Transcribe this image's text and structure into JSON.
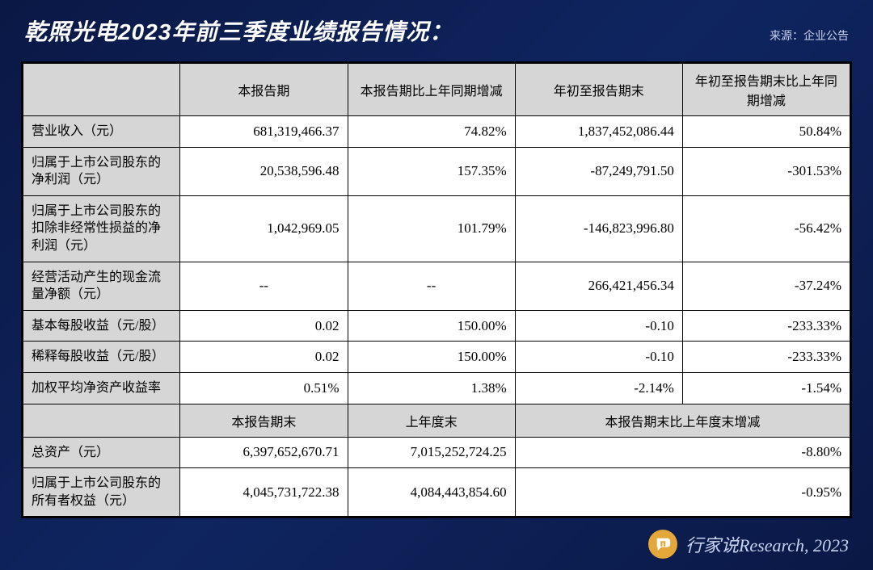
{
  "title": "乾照光电2023年前三季度业绩报告情况：",
  "source": "来源：企业公告",
  "table": {
    "headers1": [
      "",
      "本报告期",
      "本报告期比上年同期增减",
      "年初至报告期末",
      "年初至报告期末比上年同期增减"
    ],
    "rows1": [
      {
        "label": "营业收入（元）",
        "c1": "681,319,466.37",
        "c2": "74.82%",
        "c3": "1,837,452,086.44",
        "c4": "50.84%"
      },
      {
        "label": "归属于上市公司股东的净利润（元）",
        "c1": "20,538,596.48",
        "c2": "157.35%",
        "c3": "-87,249,791.50",
        "c4": "-301.53%"
      },
      {
        "label": "归属于上市公司股东的扣除非经常性损益的净利润（元）",
        "c1": "1,042,969.05",
        "c2": "101.79%",
        "c3": "-146,823,996.80",
        "c4": "-56.42%"
      },
      {
        "label": "经营活动产生的现金流量净额（元）",
        "c1": "--",
        "c2": "--",
        "c3": "266,421,456.34",
        "c4": "-37.24%",
        "centerc1c2": true
      },
      {
        "label": "基本每股收益（元/股）",
        "c1": "0.02",
        "c2": "150.00%",
        "c3": "-0.10",
        "c4": "-233.33%"
      },
      {
        "label": "稀释每股收益（元/股）",
        "c1": "0.02",
        "c2": "150.00%",
        "c3": "-0.10",
        "c4": "-233.33%"
      },
      {
        "label": "加权平均净资产收益率",
        "c1": "0.51%",
        "c2": "1.38%",
        "c3": "-2.14%",
        "c4": "-1.54%"
      }
    ],
    "headers2": [
      "",
      "本报告期末",
      "上年度末",
      "本报告期末比上年度末增减"
    ],
    "rows2": [
      {
        "label": "总资产（元）",
        "c1": "6,397,652,670.71",
        "c2": "7,015,252,724.25",
        "c34": "-8.80%"
      },
      {
        "label": "归属于上市公司股东的所有者权益（元）",
        "c1": "4,045,731,722.38",
        "c2": "4,084,443,854.60",
        "c34": "-0.95%"
      }
    ]
  },
  "footer": "行家说Research, 2023"
}
